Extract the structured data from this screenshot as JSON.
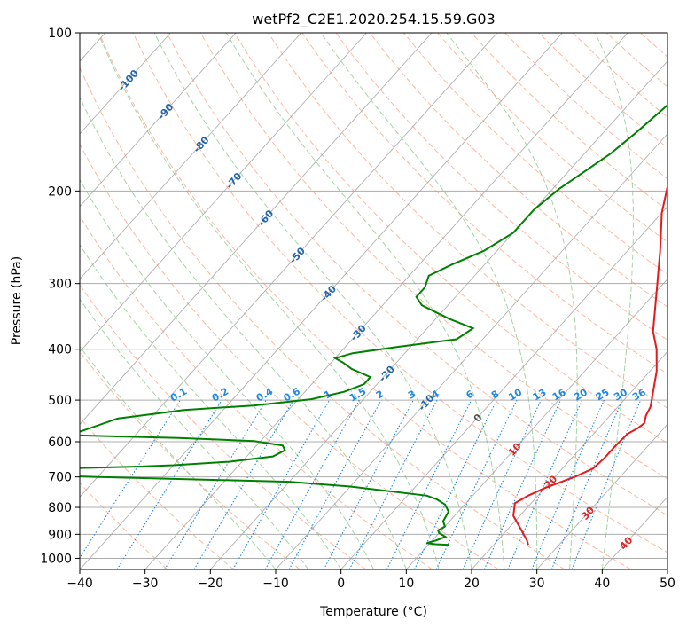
{
  "chart_data": {
    "type": "line",
    "title": "wetPf2_C2E1.2020.254.15.59.G03",
    "xlabel": "Temperature (°C)",
    "ylabel": "Pressure (hPa)",
    "xlim": [
      -40,
      50
    ],
    "ylim": [
      1050,
      100
    ],
    "yscale": "log",
    "xticks": [
      -40,
      -30,
      -20,
      -10,
      0,
      10,
      20,
      30,
      40,
      50
    ],
    "yticks": [
      100,
      200,
      300,
      400,
      500,
      600,
      700,
      800,
      900,
      1000
    ],
    "grid": true,
    "colors": {
      "temperature": "#e41a1c",
      "dewpoint": "#008000",
      "dry_adiabats": "#fca082",
      "moist_adiabats": "#8fc98f",
      "mixing_ratio": "#1e88e5",
      "isotherms": "#9e9e9e",
      "background": "#ffffff"
    },
    "isotherm_labels": [
      {
        "value": "-100",
        "p": 123
      },
      {
        "value": "-90",
        "p": 141
      },
      {
        "value": "-80",
        "p": 163
      },
      {
        "value": "-70",
        "p": 191
      },
      {
        "value": "-60",
        "p": 225
      },
      {
        "value": "-50",
        "p": 265
      },
      {
        "value": "-40",
        "p": 313
      },
      {
        "value": "-30",
        "p": 372
      },
      {
        "value": "-20",
        "p": 445
      },
      {
        "value": "-10",
        "p": 505
      },
      {
        "value": "0",
        "p": 540
      },
      {
        "value": "10",
        "p": 620
      },
      {
        "value": "20",
        "p": 715
      },
      {
        "value": "30",
        "p": 820
      },
      {
        "value": "40",
        "p": 935
      }
    ],
    "mixing_ratio_labels": [
      "0.1",
      "0.2",
      "0.4",
      "0.6",
      "1",
      "1.5",
      "2",
      "3",
      "4",
      "6",
      "8",
      "10",
      "13",
      "16",
      "20",
      "25",
      "30",
      "36"
    ],
    "series": [
      {
        "key": "temperature",
        "points": [
          [
            25.3,
            943
          ],
          [
            24.5,
            925
          ],
          [
            22,
            880
          ],
          [
            19,
            830
          ],
          [
            17.5,
            785
          ],
          [
            18.5,
            760
          ],
          [
            20,
            735
          ],
          [
            23,
            700
          ],
          [
            24.7,
            675
          ],
          [
            25,
            645
          ],
          [
            25,
            610
          ],
          [
            25.2,
            580
          ],
          [
            26,
            565
          ],
          [
            26.3,
            553
          ],
          [
            25.5,
            535
          ],
          [
            25,
            515
          ],
          [
            24,
            495
          ],
          [
            21,
            440
          ],
          [
            18,
            400
          ],
          [
            15,
            370
          ],
          [
            10,
            310
          ],
          [
            5,
            260
          ],
          [
            0,
            220
          ],
          [
            -4,
            186
          ],
          [
            -7,
            165
          ],
          [
            -8.5,
            150
          ],
          [
            -10,
            137
          ],
          [
            -11,
            128
          ],
          [
            -11,
            118
          ],
          [
            -11,
            112
          ],
          [
            -12,
            108
          ],
          [
            -14,
            104
          ],
          [
            -15,
            101
          ]
        ]
      },
      {
        "key": "dewpoint",
        "points": [
          [
            13.2,
            943
          ],
          [
            11,
            940
          ],
          [
            9.5,
            935
          ],
          [
            10.5,
            925
          ],
          [
            11.5,
            910
          ],
          [
            10,
            895
          ],
          [
            9.5,
            885
          ],
          [
            10,
            870
          ],
          [
            9,
            850
          ],
          [
            8.5,
            815
          ],
          [
            7,
            790
          ],
          [
            5,
            772
          ],
          [
            3,
            760
          ],
          [
            -10,
            730
          ],
          [
            -20,
            715
          ],
          [
            -50,
            700
          ],
          [
            -80,
            684
          ],
          [
            -60,
            676
          ],
          [
            -45,
            669
          ],
          [
            -40,
            665
          ],
          [
            -32,
            655
          ],
          [
            -26,
            640
          ],
          [
            -25,
            623
          ],
          [
            -26,
            610
          ],
          [
            -31,
            598
          ],
          [
            -43,
            590
          ],
          [
            -60,
            583
          ],
          [
            -55,
            542
          ],
          [
            -46,
            522
          ],
          [
            -36,
            512
          ],
          [
            -28,
            498
          ],
          [
            -24,
            482
          ],
          [
            -22,
            466
          ],
          [
            -22,
            452
          ],
          [
            -26,
            436
          ],
          [
            -28,
            425
          ],
          [
            -30,
            416
          ],
          [
            -28,
            407
          ],
          [
            -22,
            396
          ],
          [
            -14,
            383
          ],
          [
            -13,
            365
          ],
          [
            -18,
            350
          ],
          [
            -24,
            330
          ],
          [
            -26,
            318
          ],
          [
            -26,
            305
          ],
          [
            -27,
            290
          ],
          [
            -25,
            276
          ],
          [
            -22,
            260
          ],
          [
            -20,
            240
          ],
          [
            -20,
            217
          ],
          [
            -19,
            198
          ],
          [
            -16,
            170
          ],
          [
            -15,
            155
          ],
          [
            -14,
            138
          ],
          [
            -13.5,
            126
          ],
          [
            -13.5,
            116
          ],
          [
            -14,
            108
          ],
          [
            -14.5,
            101
          ]
        ]
      }
    ]
  }
}
